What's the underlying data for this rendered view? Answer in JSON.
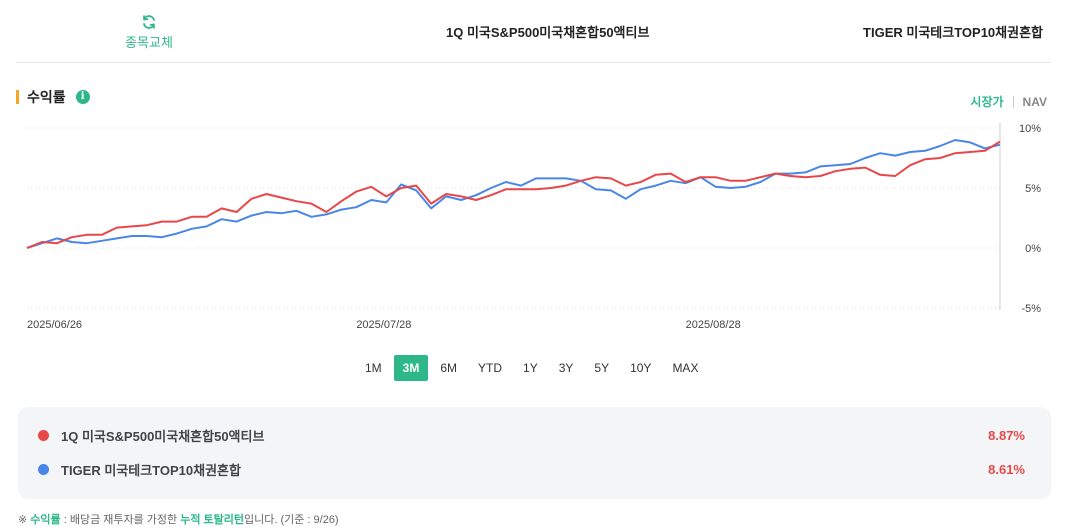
{
  "header": {
    "swap_label": "종목교체",
    "fund_a": "1Q 미국S&P500미국채혼합50액티브",
    "fund_b": "TIGER 미국테크TOP10채권혼합"
  },
  "section": {
    "title": "수익률",
    "info_glyph": "i",
    "toggle_market": "시장가",
    "toggle_nav": "NAV"
  },
  "periods": [
    "1M",
    "3M",
    "6M",
    "YTD",
    "1Y",
    "3Y",
    "5Y",
    "10Y",
    "MAX"
  ],
  "active_period": "3M",
  "colors": {
    "accent": "#2eb88a",
    "series_a": "#e8474a",
    "series_b": "#4a86e8",
    "marker": "#f5a623"
  },
  "chart_data": {
    "type": "line",
    "x_ticks": [
      "2025/06/26",
      "2025/07/28",
      "2025/08/28"
    ],
    "y_ticks": [
      "10%",
      "5%",
      "0%",
      "-5%"
    ],
    "ylim": [
      -5,
      10
    ],
    "grid": true,
    "series": [
      {
        "name": "1Q 미국S&P500미국채혼합50액티브",
        "color": "#e8474a",
        "values": [
          0.0,
          0.5,
          0.4,
          0.9,
          1.1,
          1.1,
          1.7,
          1.8,
          1.9,
          2.2,
          2.2,
          2.6,
          2.6,
          3.3,
          3.0,
          4.1,
          4.5,
          4.2,
          3.9,
          3.7,
          3.0,
          3.9,
          4.7,
          5.1,
          4.3,
          5.0,
          5.2,
          3.7,
          4.5,
          4.3,
          4.0,
          4.4,
          4.9,
          4.9,
          4.9,
          5.0,
          5.2,
          5.6,
          5.9,
          5.8,
          5.2,
          5.5,
          6.1,
          6.2,
          5.5,
          5.9,
          5.9,
          5.6,
          5.6,
          5.9,
          6.2,
          6.0,
          5.9,
          6.0,
          6.4,
          6.6,
          6.7,
          6.1,
          6.0,
          6.9,
          7.4,
          7.5,
          7.9,
          8.0,
          8.1,
          8.87
        ]
      },
      {
        "name": "TIGER 미국테크TOP10채권혼합",
        "color": "#4a86e8",
        "values": [
          0.0,
          0.4,
          0.8,
          0.5,
          0.4,
          0.6,
          0.8,
          1.0,
          1.0,
          0.9,
          1.2,
          1.6,
          1.8,
          2.4,
          2.2,
          2.7,
          3.0,
          2.9,
          3.1,
          2.6,
          2.8,
          3.2,
          3.4,
          4.0,
          3.8,
          5.3,
          4.8,
          3.3,
          4.3,
          4.0,
          4.4,
          5.0,
          5.5,
          5.2,
          5.8,
          5.8,
          5.8,
          5.6,
          4.9,
          4.8,
          4.1,
          4.9,
          5.2,
          5.6,
          5.4,
          5.9,
          5.1,
          5.0,
          5.1,
          5.5,
          6.2,
          6.2,
          6.3,
          6.8,
          6.9,
          7.0,
          7.5,
          7.9,
          7.7,
          8.0,
          8.1,
          8.5,
          9.0,
          8.8,
          8.3,
          8.61
        ]
      }
    ]
  },
  "legend": {
    "a": {
      "name": "1Q 미국S&P500미국채혼합50액티브",
      "value": "8.87%"
    },
    "b": {
      "name": "TIGER 미국테크TOP10채권혼합",
      "value": "8.61%"
    }
  },
  "footnote": {
    "mark": "※",
    "term": "수익률",
    "colon": " : 배당금 재투자를 가정한 ",
    "highlight": "누적 토탈리턴",
    "tail": "입니다. (기준 : 9/26)"
  }
}
